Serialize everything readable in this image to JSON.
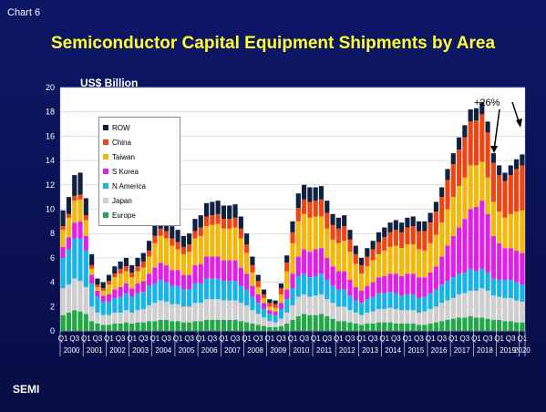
{
  "header": {
    "chart_number": "Chart 6"
  },
  "footer": {
    "source": "SEMI"
  },
  "chart_data": {
    "type": "bar",
    "stacked": true,
    "title": "Semiconductor Capital Equipment Shipments by Area",
    "ylabel": "US$ Billion",
    "ylim": [
      0,
      20
    ],
    "yticks": [
      0,
      2,
      4,
      6,
      8,
      10,
      12,
      14,
      16,
      18,
      20
    ],
    "legend_position": "top-left",
    "annotation": "+26%",
    "quarter_labels": [
      "Q1",
      "Q3"
    ],
    "years": [
      "2000",
      "2001",
      "2002",
      "2003",
      "2004",
      "2005",
      "2006",
      "2007",
      "2008",
      "2009",
      "2010",
      "2011",
      "2012",
      "2013",
      "2014",
      "2015",
      "2016",
      "2017",
      "2018",
      "2019",
      "2020"
    ],
    "series_order": [
      "Europe",
      "Japan",
      "N America",
      "S Korea",
      "Taiwan",
      "China",
      "ROW"
    ],
    "colors": {
      "Europe": "#22a846",
      "Japan": "#cfcfcf",
      "N America": "#19b4e6",
      "S Korea": "#e11fe6",
      "Taiwan": "#f2b80c",
      "China": "#ee4512",
      "ROW": "#102040"
    },
    "categories": [
      "2000 Q1",
      "2000 Q2",
      "2000 Q3",
      "2000 Q4",
      "2001 Q1",
      "2001 Q2",
      "2001 Q3",
      "2001 Q4",
      "2002 Q1",
      "2002 Q2",
      "2002 Q3",
      "2002 Q4",
      "2003 Q1",
      "2003 Q2",
      "2003 Q3",
      "2003 Q4",
      "2004 Q1",
      "2004 Q2",
      "2004 Q3",
      "2004 Q4",
      "2005 Q1",
      "2005 Q2",
      "2005 Q3",
      "2005 Q4",
      "2006 Q1",
      "2006 Q2",
      "2006 Q3",
      "2006 Q4",
      "2007 Q1",
      "2007 Q2",
      "2007 Q3",
      "2007 Q4",
      "2008 Q1",
      "2008 Q2",
      "2008 Q3",
      "2008 Q4",
      "2009 Q1",
      "2009 Q2",
      "2009 Q3",
      "2009 Q4",
      "2010 Q1",
      "2010 Q2",
      "2010 Q3",
      "2010 Q4",
      "2011 Q1",
      "2011 Q2",
      "2011 Q3",
      "2011 Q4",
      "2012 Q1",
      "2012 Q2",
      "2012 Q3",
      "2012 Q4",
      "2013 Q1",
      "2013 Q2",
      "2013 Q3",
      "2013 Q4",
      "2014 Q1",
      "2014 Q2",
      "2014 Q3",
      "2014 Q4",
      "2015 Q1",
      "2015 Q2",
      "2015 Q3",
      "2015 Q4",
      "2016 Q1",
      "2016 Q2",
      "2016 Q3",
      "2016 Q4",
      "2017 Q1",
      "2017 Q2",
      "2017 Q3",
      "2017 Q4",
      "2018 Q1",
      "2018 Q2",
      "2018 Q3",
      "2018 Q4",
      "2019 Q1",
      "2019 Q2",
      "2019 Q3",
      "2019 Q4",
      "2020 Q1"
    ],
    "series": [
      {
        "name": "Europe",
        "values": [
          1.3,
          1.5,
          1.7,
          1.6,
          1.4,
          0.8,
          0.6,
          0.5,
          0.5,
          0.6,
          0.6,
          0.7,
          0.6,
          0.7,
          0.7,
          0.8,
          0.8,
          0.9,
          0.9,
          0.8,
          0.8,
          0.7,
          0.7,
          0.8,
          0.8,
          0.9,
          0.9,
          0.9,
          0.9,
          0.9,
          0.9,
          0.8,
          0.7,
          0.6,
          0.5,
          0.4,
          0.3,
          0.3,
          0.4,
          0.6,
          0.9,
          1.2,
          1.4,
          1.3,
          1.3,
          1.4,
          1.2,
          1.0,
          0.8,
          0.8,
          0.7,
          0.6,
          0.5,
          0.6,
          0.6,
          0.7,
          0.7,
          0.7,
          0.6,
          0.6,
          0.6,
          0.6,
          0.5,
          0.5,
          0.6,
          0.7,
          0.8,
          0.9,
          1.0,
          1.1,
          1.1,
          1.2,
          1.1,
          1.1,
          1.0,
          0.9,
          0.9,
          0.8,
          0.8,
          0.7,
          0.7
        ]
      },
      {
        "name": "Japan",
        "values": [
          2.2,
          2.3,
          2.6,
          2.5,
          2.2,
          1.2,
          0.9,
          0.8,
          0.8,
          0.9,
          0.9,
          1.0,
          0.9,
          1.0,
          1.1,
          1.3,
          1.5,
          1.6,
          1.5,
          1.4,
          1.4,
          1.3,
          1.3,
          1.5,
          1.5,
          1.7,
          1.7,
          1.7,
          1.6,
          1.6,
          1.6,
          1.5,
          1.4,
          1.1,
          0.9,
          0.7,
          0.5,
          0.4,
          0.6,
          0.9,
          1.2,
          1.6,
          1.6,
          1.5,
          1.6,
          1.6,
          1.4,
          1.3,
          1.2,
          1.2,
          1.0,
          0.9,
          0.8,
          0.9,
          1.0,
          1.1,
          1.1,
          1.2,
          1.2,
          1.1,
          1.1,
          1.1,
          1.0,
          1.1,
          1.2,
          1.3,
          1.5,
          1.6,
          1.7,
          1.9,
          2.0,
          2.1,
          2.2,
          2.4,
          2.3,
          2.0,
          1.9,
          1.9,
          1.9,
          1.8,
          1.7
        ]
      },
      {
        "name": "N America",
        "values": [
          2.5,
          2.9,
          3.3,
          3.5,
          3.0,
          1.9,
          1.3,
          1.1,
          1.1,
          1.2,
          1.3,
          1.4,
          1.3,
          1.4,
          1.4,
          1.6,
          1.6,
          1.7,
          1.6,
          1.5,
          1.5,
          1.4,
          1.4,
          1.6,
          1.6,
          1.7,
          1.7,
          1.7,
          1.6,
          1.6,
          1.6,
          1.4,
          1.3,
          1.1,
          0.9,
          0.7,
          0.6,
          0.6,
          0.8,
          1.1,
          1.4,
          1.7,
          1.7,
          1.6,
          1.6,
          1.7,
          1.6,
          1.4,
          1.4,
          1.4,
          1.2,
          1.0,
          1.0,
          1.1,
          1.2,
          1.3,
          1.3,
          1.3,
          1.3,
          1.2,
          1.3,
          1.3,
          1.2,
          1.2,
          1.3,
          1.4,
          1.5,
          1.6,
          1.7,
          1.7,
          1.7,
          1.8,
          1.6,
          1.6,
          1.5,
          1.4,
          1.4,
          1.5,
          1.5,
          1.5,
          1.4
        ]
      },
      {
        "name": "S Korea",
        "values": [
          0.9,
          1.0,
          1.3,
          1.4,
          1.2,
          0.7,
          0.5,
          0.5,
          0.6,
          0.7,
          0.8,
          0.8,
          0.7,
          0.8,
          0.9,
          1.0,
          1.3,
          1.4,
          1.4,
          1.3,
          1.3,
          1.2,
          1.2,
          1.5,
          1.6,
          1.8,
          1.8,
          1.8,
          1.7,
          1.7,
          1.7,
          1.5,
          1.3,
          0.9,
          0.7,
          0.5,
          0.3,
          0.3,
          0.5,
          0.8,
          1.2,
          1.6,
          2.0,
          2.1,
          2.2,
          2.1,
          1.8,
          1.6,
          1.5,
          1.5,
          1.3,
          1.1,
          1.0,
          1.1,
          1.2,
          1.3,
          1.4,
          1.5,
          1.6,
          1.6,
          1.7,
          1.7,
          1.7,
          1.6,
          1.7,
          1.9,
          2.3,
          2.9,
          3.4,
          3.8,
          4.4,
          4.9,
          5.3,
          5.6,
          4.8,
          3.5,
          3.0,
          2.6,
          2.6,
          2.6,
          2.6
        ]
      },
      {
        "name": "Taiwan",
        "values": [
          1.4,
          1.6,
          1.8,
          1.8,
          1.3,
          0.5,
          0.3,
          0.4,
          0.8,
          1.0,
          1.1,
          1.0,
          0.9,
          1.0,
          1.1,
          1.4,
          2.0,
          2.2,
          2.2,
          2.0,
          1.7,
          1.7,
          1.9,
          2.2,
          2.3,
          2.5,
          2.6,
          2.7,
          2.6,
          2.6,
          2.7,
          2.4,
          1.7,
          1.1,
          0.6,
          0.4,
          0.3,
          0.3,
          0.7,
          1.5,
          2.5,
          2.9,
          2.9,
          2.8,
          2.7,
          2.6,
          2.4,
          2.2,
          2.3,
          2.5,
          2.3,
          1.9,
          1.4,
          1.6,
          1.8,
          1.9,
          2.1,
          2.2,
          2.3,
          2.3,
          2.4,
          2.4,
          2.3,
          2.2,
          2.4,
          2.6,
          2.8,
          3.0,
          3.2,
          3.4,
          3.4,
          3.6,
          3.4,
          3.2,
          3.0,
          2.8,
          2.6,
          2.5,
          2.8,
          3.2,
          3.5
        ]
      },
      {
        "name": "China",
        "values": [
          0.3,
          0.3,
          0.4,
          0.4,
          0.4,
          0.3,
          0.2,
          0.2,
          0.3,
          0.3,
          0.4,
          0.4,
          0.4,
          0.4,
          0.5,
          0.5,
          0.6,
          0.6,
          0.6,
          0.6,
          0.6,
          0.6,
          0.6,
          0.6,
          0.7,
          0.8,
          0.8,
          0.8,
          0.8,
          0.8,
          0.8,
          0.8,
          0.7,
          0.6,
          0.5,
          0.3,
          0.3,
          0.3,
          0.5,
          0.7,
          0.9,
          1.1,
          1.2,
          1.3,
          1.3,
          1.4,
          1.3,
          1.2,
          1.2,
          1.2,
          1.0,
          0.8,
          0.7,
          0.8,
          0.9,
          1.0,
          1.1,
          1.2,
          1.3,
          1.3,
          1.4,
          1.5,
          1.5,
          1.6,
          1.7,
          1.9,
          2.1,
          2.4,
          2.7,
          3.0,
          3.3,
          3.6,
          3.7,
          3.9,
          3.7,
          3.2,
          3.0,
          3.0,
          3.2,
          3.5,
          3.7
        ]
      },
      {
        "name": "ROW",
        "values": [
          1.3,
          1.4,
          1.7,
          1.8,
          1.4,
          0.9,
          0.5,
          0.5,
          0.5,
          0.6,
          0.6,
          0.7,
          0.6,
          0.7,
          0.7,
          0.8,
          1.0,
          1.1,
          1.1,
          1.0,
          1.0,
          0.9,
          0.9,
          1.0,
          1.0,
          1.1,
          1.1,
          1.1,
          1.1,
          1.1,
          1.1,
          1.0,
          0.9,
          0.7,
          0.5,
          0.4,
          0.3,
          0.3,
          0.4,
          0.6,
          0.9,
          1.2,
          1.2,
          1.2,
          1.1,
          1.1,
          1.0,
          0.9,
          0.9,
          0.9,
          0.8,
          0.7,
          0.6,
          0.7,
          0.7,
          0.8,
          0.8,
          0.8,
          0.8,
          0.8,
          0.8,
          0.8,
          0.8,
          0.8,
          0.8,
          0.8,
          0.8,
          0.9,
          0.9,
          1.0,
          1.0,
          1.0,
          1.0,
          1.0,
          0.9,
          0.8,
          0.8,
          0.7,
          0.8,
          0.8,
          0.9
        ]
      }
    ]
  }
}
